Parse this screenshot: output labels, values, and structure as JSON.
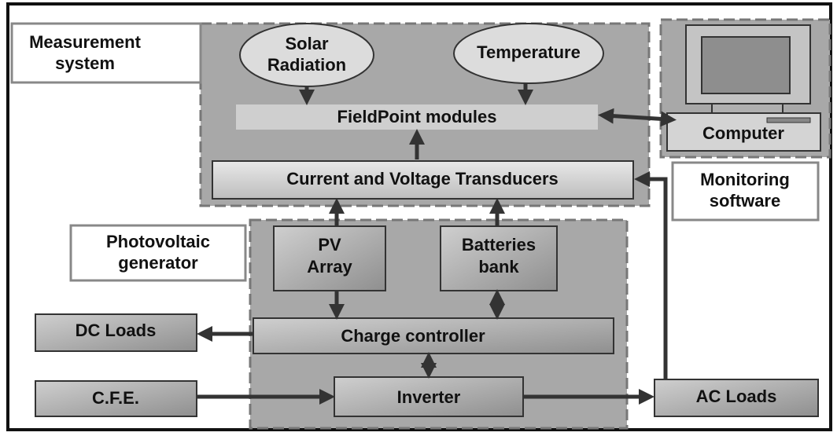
{
  "measurement_system": {
    "label": [
      "Measurement",
      "system"
    ],
    "sensors": [
      [
        "Solar",
        "Radiation"
      ],
      [
        "Temperature"
      ]
    ],
    "fieldpoint": "FieldPoint modules",
    "transducers": "Current and Voltage Transducers"
  },
  "computer": {
    "label": "Computer",
    "software": [
      "Monitoring",
      "software"
    ]
  },
  "pv_generator": {
    "label": [
      "Photovoltaic",
      "generator"
    ],
    "pv_array": [
      "PV",
      "Array"
    ],
    "batteries": [
      "Batteries",
      "bank"
    ],
    "charge_controller": "Charge controller",
    "inverter": "Inverter"
  },
  "loads": {
    "dc": "DC Loads",
    "cfe": "C.F.E.",
    "ac": "AC Loads"
  }
}
